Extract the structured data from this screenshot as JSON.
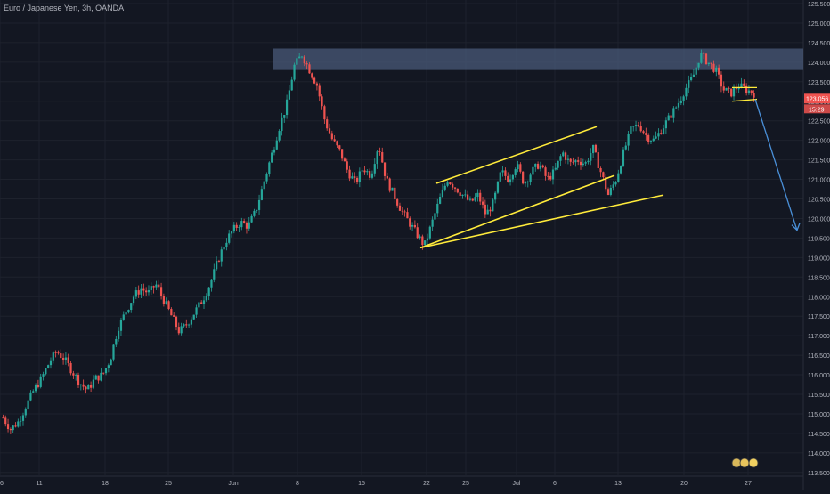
{
  "header": {
    "title": "Euro / Japanese Yen, 3h, OANDA"
  },
  "colors": {
    "background": "#131722",
    "up": "#26a69a",
    "down": "#ef5350",
    "trendline": "#ffeb3b",
    "arrow": "#4a90d9",
    "zone": "#4a5a78",
    "axis_text": "#b2b5be",
    "price_badge": "#ef5350",
    "grid": "#1e222d"
  },
  "chart_data": {
    "type": "candlestick",
    "title": "Euro / Japanese Yen, 3h, OANDA",
    "ylim": [
      113.5,
      125.5
    ],
    "y_ticks": [
      "113.500",
      "114.000",
      "114.500",
      "115.000",
      "115.500",
      "116.000",
      "116.500",
      "117.000",
      "117.500",
      "118.000",
      "118.500",
      "119.000",
      "119.500",
      "120.000",
      "120.500",
      "121.000",
      "121.500",
      "122.000",
      "122.500",
      "123.000",
      "123.500",
      "124.000",
      "124.500",
      "125.000",
      "125.500"
    ],
    "x_ticks": [
      "6",
      "11",
      "18",
      "25",
      "Jun",
      "8",
      "15",
      "22",
      "25",
      "Jul",
      "6",
      "13",
      "20",
      "27"
    ],
    "path_price": [
      114.9,
      114.6,
      114.8,
      115.2,
      115.6,
      115.9,
      116.3,
      116.6,
      116.4,
      116.1,
      115.8,
      115.6,
      115.9,
      116.0,
      116.4,
      117.2,
      117.6,
      118.0,
      118.2,
      118.1,
      118.3,
      117.9,
      117.5,
      117.1,
      117.3,
      117.6,
      117.9,
      118.3,
      118.9,
      119.4,
      119.7,
      119.9,
      119.8,
      120.2,
      120.9,
      121.6,
      122.3,
      122.9,
      123.9,
      124.2,
      123.8,
      123.4,
      122.5,
      122.0,
      121.7,
      121.2,
      120.9,
      121.3,
      121.1,
      121.9,
      121.0,
      120.6,
      120.2,
      119.9,
      119.6,
      119.3,
      119.9,
      120.5,
      121.0,
      120.8,
      120.6,
      120.4,
      120.6,
      120.1,
      120.4,
      121.2,
      121.0,
      121.4,
      120.9,
      121.2,
      121.4,
      121.0,
      121.2,
      121.7,
      121.4,
      121.5,
      121.4,
      121.8,
      121.2,
      120.6,
      121.0,
      121.7,
      122.3,
      122.4,
      122.1,
      122.0,
      122.3,
      122.6,
      122.9,
      123.3,
      123.6,
      124.2,
      124.0,
      123.8,
      123.3,
      123.2,
      123.4,
      123.3,
      123.2
    ],
    "last_price": "123.056",
    "countdown": "15:29",
    "resistance_zone": [
      123.8,
      124.35
    ],
    "annotations": {
      "channel_upper": [
        [
          120.9,
          122.35
        ]
      ],
      "channel_lower": [
        [
          119.25,
          121.1
        ]
      ],
      "support_line": [
        [
          119.25,
          120.6
        ]
      ],
      "flag_upper": [
        [
          123.35,
          123.35
        ]
      ],
      "flag_lower": [
        [
          123.0,
          123.05
        ]
      ],
      "projection_arrow": [
        [
          123.05,
          119.7
        ]
      ]
    }
  }
}
